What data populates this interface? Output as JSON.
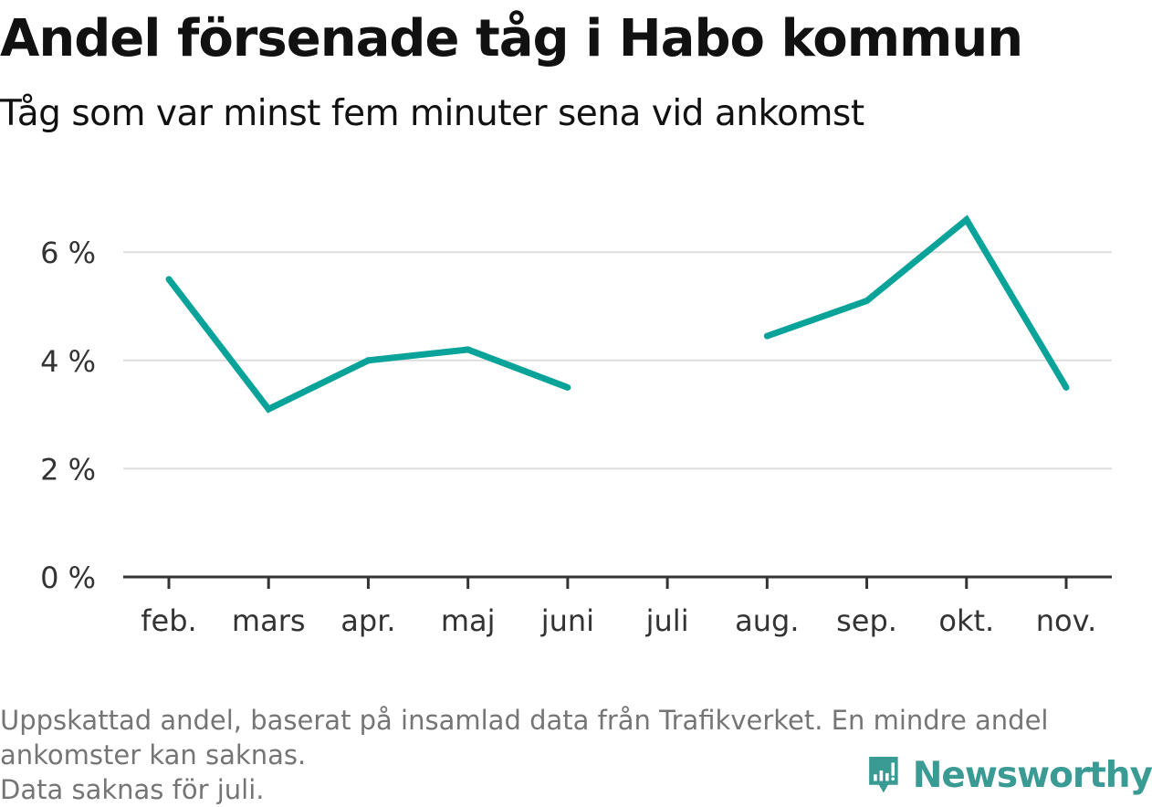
{
  "header": {
    "title": "Andel försenade tåg i Habo kommun",
    "subtitle": "Tåg som var minst fem minuter sena vid ankomst"
  },
  "footer": {
    "note_line_1": "Uppskattad andel, baserat på insamlad data från Trafikverket. En mindre andel",
    "note_line_2": "ankomster kan saknas.",
    "note_line_3": "Data saknas för juli.",
    "brand_name": "Newsworthy"
  },
  "colors": {
    "line": "#0aa399",
    "gridline": "#dddddd",
    "axis": "#333333",
    "brand": "#3a9a94"
  },
  "chart_data": {
    "type": "line",
    "title": "Andel försenade tåg i Habo kommun",
    "subtitle": "Tåg som var minst fem minuter sena vid ankomst",
    "xlabel": "",
    "ylabel": "",
    "categories": [
      "feb.",
      "mars",
      "apr.",
      "maj",
      "juni",
      "juli",
      "aug.",
      "sep.",
      "okt.",
      "nov."
    ],
    "series": [
      {
        "values": [
          5.5,
          3.1,
          4.0,
          4.2,
          3.5,
          null,
          4.45,
          5.1,
          6.6,
          3.5
        ]
      }
    ],
    "ylim": [
      0,
      7
    ],
    "yticks": [
      0,
      2,
      4,
      6
    ],
    "ytick_labels": [
      "0 %",
      "2 %",
      "4 %",
      "6 %"
    ],
    "grid": true,
    "legend": "none"
  }
}
